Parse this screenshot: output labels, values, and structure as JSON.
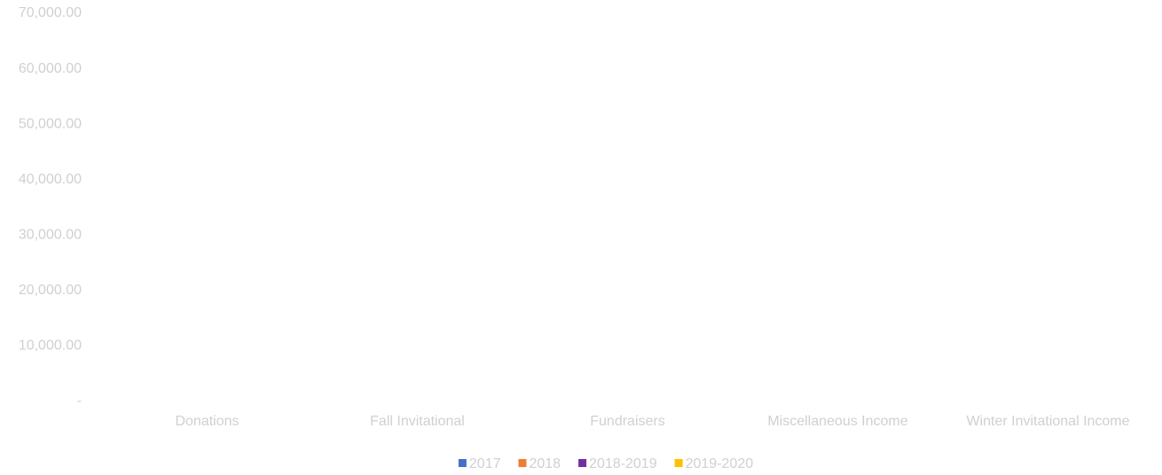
{
  "chart_data": {
    "type": "bar",
    "categories": [
      "Donations",
      "Fall Invitational",
      "Fundraisers",
      "Miscellaneous Income",
      "Winter Invitational Income"
    ],
    "series": [
      {
        "name": "2017",
        "color": "#4472c4",
        "values": [
          0,
          0,
          0,
          0,
          0
        ]
      },
      {
        "name": "2018",
        "color": "#ed7d31",
        "values": [
          0,
          0,
          0,
          0,
          0
        ]
      },
      {
        "name": "2018-2019",
        "color": "#7030a0",
        "values": [
          0,
          0,
          0,
          0,
          0
        ]
      },
      {
        "name": "2019-2020",
        "color": "#ffc000",
        "values": [
          0,
          0,
          0,
          0,
          0
        ]
      }
    ],
    "ylim": [
      0,
      70000
    ],
    "yticks": [
      {
        "value": 0,
        "label": "-"
      },
      {
        "value": 10000,
        "label": "10,000.00"
      },
      {
        "value": 20000,
        "label": "20,000.00"
      },
      {
        "value": 30000,
        "label": "30,000.00"
      },
      {
        "value": 40000,
        "label": "40,000.00"
      },
      {
        "value": 50000,
        "label": "50,000.00"
      },
      {
        "value": 60000,
        "label": "60,000.00"
      },
      {
        "value": 70000,
        "label": "70,000.00"
      }
    ],
    "grid": false,
    "legend": "bottom"
  }
}
